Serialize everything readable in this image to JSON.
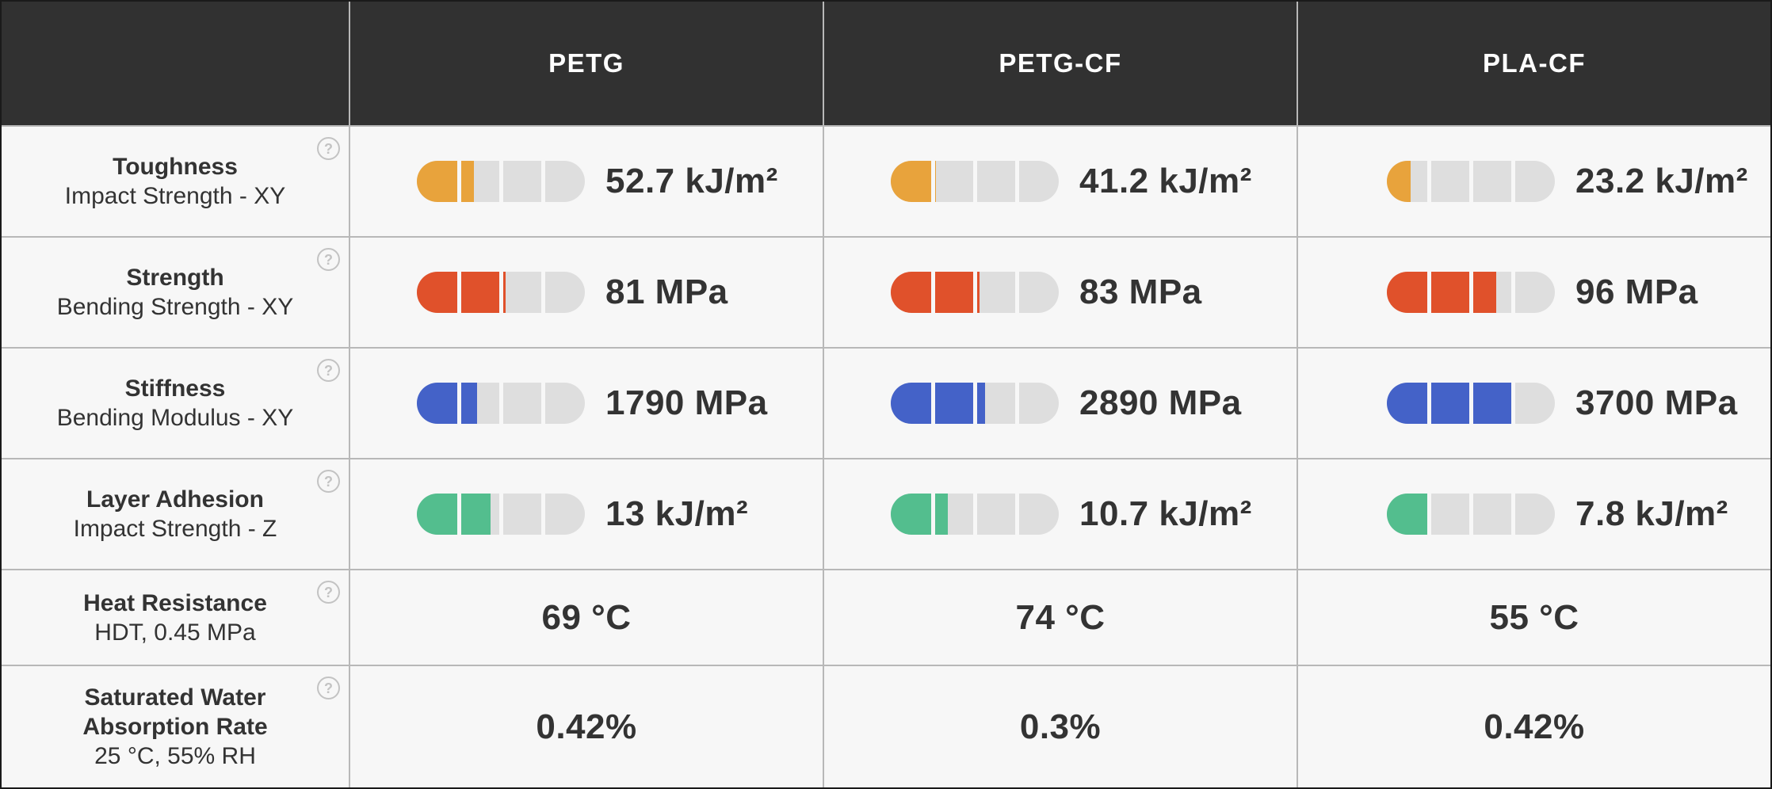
{
  "header": {
    "columns": [
      "PETG",
      "PETG-CF",
      "PLA-CF"
    ]
  },
  "help_glyph": "?",
  "colors": {
    "header_bg": "#313131",
    "header_text": "#FFFFFF",
    "row_bg": "#F7F7F7",
    "text": "#333333",
    "grid_line": "#B8B8B8",
    "outer_border": "#1A1A1A",
    "track": "#DEDEDE",
    "help_icon": "#C3C3C3",
    "orange": "#E8A33C",
    "red": "#E0512B",
    "blue": "#4462C8",
    "green": "#53BE8E"
  },
  "rows": [
    {
      "label": "Toughness",
      "sublabel": "Impact Strength - XY",
      "type": "gauge",
      "color_key": "orange",
      "values": [
        {
          "text": "52.7 kJ/m²",
          "fill": 0.34
        },
        {
          "text": "41.2 kJ/m²",
          "fill": 0.27
        },
        {
          "text": "23.2 kJ/m²",
          "fill": 0.14
        }
      ]
    },
    {
      "label": "Strength",
      "sublabel": "Bending Strength - XY",
      "type": "gauge",
      "color_key": "red",
      "values": [
        {
          "text": "81 MPa",
          "fill": 0.53
        },
        {
          "text": "83 MPa",
          "fill": 0.53
        },
        {
          "text": "96 MPa",
          "fill": 0.65
        }
      ]
    },
    {
      "label": "Stiffness",
      "sublabel": "Bending Modulus - XY",
      "type": "gauge",
      "color_key": "blue",
      "values": [
        {
          "text": "1790 MPa",
          "fill": 0.36
        },
        {
          "text": "2890 MPa",
          "fill": 0.56
        },
        {
          "text": "3700 MPa",
          "fill": 0.74
        }
      ]
    },
    {
      "label": "Layer Adhesion",
      "sublabel": "Impact Strength - Z",
      "type": "gauge",
      "color_key": "green",
      "values": [
        {
          "text": "13 kJ/m²",
          "fill": 0.44
        },
        {
          "text": "10.7 kJ/m²",
          "fill": 0.34
        },
        {
          "text": "7.8 kJ/m²",
          "fill": 0.26
        }
      ]
    },
    {
      "label": "Heat Resistance",
      "sublabel": "HDT, 0.45 MPa",
      "type": "text",
      "values": [
        {
          "text": "69 °C"
        },
        {
          "text": "74 °C"
        },
        {
          "text": "55 °C"
        }
      ]
    },
    {
      "label": "Saturated Water Absorption Rate",
      "sublabel": "25 °C, 55% RH",
      "type": "text",
      "values": [
        {
          "text": "0.42%"
        },
        {
          "text": "0.3%"
        },
        {
          "text": "0.42%"
        }
      ]
    }
  ],
  "chart_data": {
    "type": "table",
    "columns": [
      "PETG",
      "PETG-CF",
      "PLA-CF"
    ],
    "rows": [
      {
        "metric": "Toughness",
        "measure": "Impact Strength - XY",
        "unit": "kJ/m²",
        "values": [
          52.7,
          41.2,
          23.2
        ],
        "gauge_segments": 4,
        "gauge_fill_fraction": [
          0.34,
          0.27,
          0.14
        ],
        "gauge_color": "#E8A33C"
      },
      {
        "metric": "Strength",
        "measure": "Bending Strength - XY",
        "unit": "MPa",
        "values": [
          81,
          83,
          96
        ],
        "gauge_segments": 4,
        "gauge_fill_fraction": [
          0.53,
          0.53,
          0.65
        ],
        "gauge_color": "#E0512B"
      },
      {
        "metric": "Stiffness",
        "measure": "Bending Modulus - XY",
        "unit": "MPa",
        "values": [
          1790,
          2890,
          3700
        ],
        "gauge_segments": 4,
        "gauge_fill_fraction": [
          0.36,
          0.56,
          0.74
        ],
        "gauge_color": "#4462C8"
      },
      {
        "metric": "Layer Adhesion",
        "measure": "Impact Strength - Z",
        "unit": "kJ/m²",
        "values": [
          13,
          10.7,
          7.8
        ],
        "gauge_segments": 4,
        "gauge_fill_fraction": [
          0.44,
          0.34,
          0.26
        ],
        "gauge_color": "#53BE8E"
      },
      {
        "metric": "Heat Resistance",
        "measure": "HDT, 0.45 MPa",
        "unit": "°C",
        "values": [
          69,
          74,
          55
        ]
      },
      {
        "metric": "Saturated Water Absorption Rate",
        "measure": "25 °C, 55% RH",
        "unit": "%",
        "values": [
          0.42,
          0.3,
          0.42
        ]
      }
    ]
  }
}
